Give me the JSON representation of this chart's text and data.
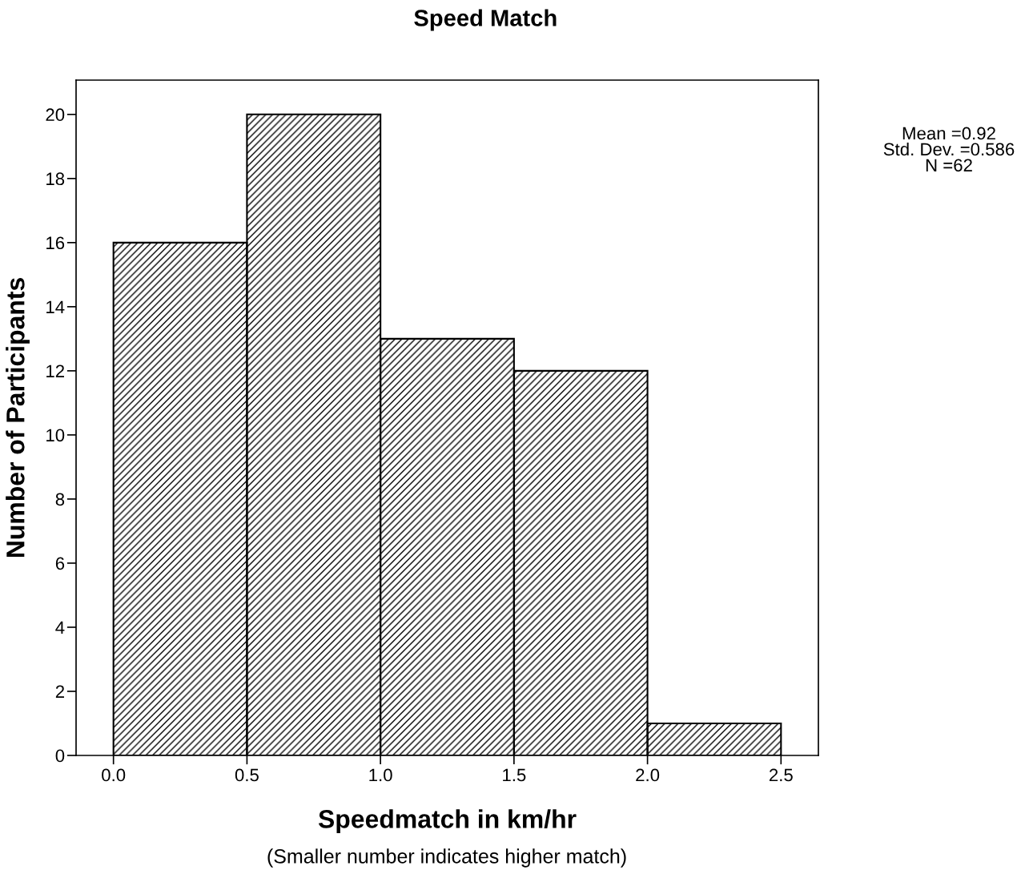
{
  "chart_data": {
    "type": "histogram",
    "title": "Speed Match",
    "xlabel": "Speedmatch in km/hr",
    "ylabel": "Number of Participants",
    "bins": [
      0.0,
      0.5,
      1.0,
      1.5,
      2.0,
      2.5
    ],
    "values": [
      16,
      20,
      13,
      12,
      1
    ],
    "color": "#000000",
    "xlim": [
      -0.14,
      2.64
    ],
    "ylim": [
      0,
      21.07
    ],
    "xticks": [
      {
        "value": 0.0,
        "label": "0.0"
      },
      {
        "value": 0.5,
        "label": "0.5"
      },
      {
        "value": 1.0,
        "label": "1.0"
      },
      {
        "value": 1.5,
        "label": "1.5"
      },
      {
        "value": 2.0,
        "label": "2.0"
      },
      {
        "value": 2.5,
        "label": "2.5"
      }
    ],
    "yticks": [
      0,
      2,
      4,
      6,
      8,
      10,
      12,
      14,
      16,
      18,
      20
    ],
    "grid": false,
    "legend": false,
    "annotations": [
      "Mean =0.92\nStd. Dev. =0.586\nN =62",
      "(Smaller number indicates higher match)"
    ]
  }
}
